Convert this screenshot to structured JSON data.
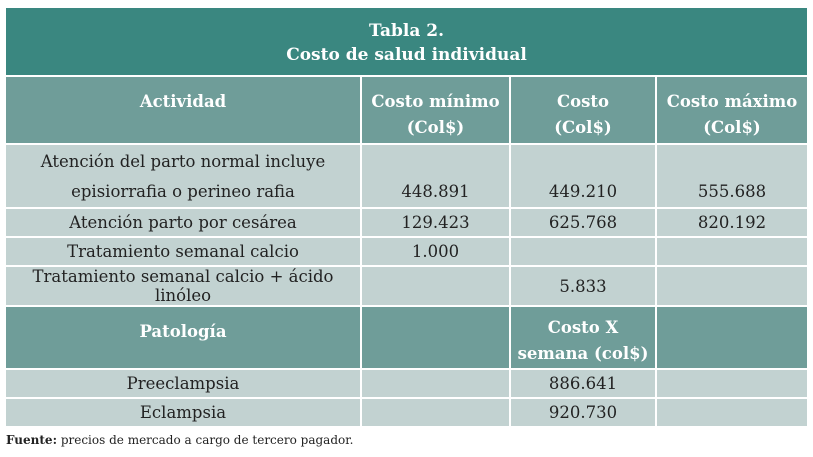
{
  "title": {
    "line1": "Tabla 2.",
    "line2": "Costo de salud individual"
  },
  "headers": {
    "actividad": "Actividad",
    "costo_minimo": [
      "Costo mínimo",
      "(Col$)"
    ],
    "costo": [
      "Costo",
      "(Col$)"
    ],
    "costo_maximo": [
      "Costo máximo",
      "(Col$)"
    ]
  },
  "activities": [
    {
      "label_line1": "Atención del parto normal incluye",
      "label_line2": "episiorrafia o perineo rafia",
      "min": "448.891",
      "cost": "449.210",
      "max": "555.688"
    },
    {
      "label": "Atención parto por cesárea",
      "min": "129.423",
      "cost": "625.768",
      "max": "820.192"
    },
    {
      "label": "Tratamiento semanal calcio",
      "min": "1.000",
      "cost": "",
      "max": ""
    },
    {
      "label": "Tratamiento semanal calcio + ácido linóleo",
      "min": "",
      "cost": "5.833",
      "max": ""
    }
  ],
  "pathology_header": {
    "label": "Patología",
    "cost_line1": "Costo X",
    "cost_line2": "semana (col$)"
  },
  "pathologies": [
    {
      "label": "Preeclampsia",
      "cost": "886.641"
    },
    {
      "label": "Eclampsia",
      "cost": "920.730"
    }
  ],
  "footnote": {
    "label": "Fuente:",
    "text": " precios de mercado a cargo de tercero pagador."
  }
}
